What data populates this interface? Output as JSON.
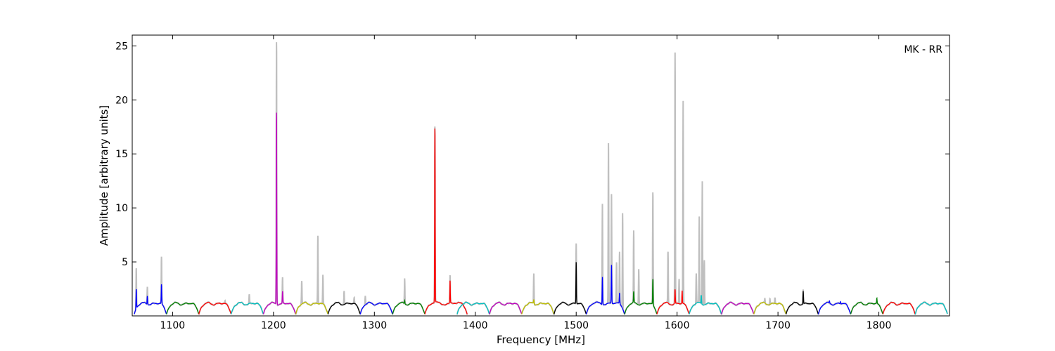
{
  "chart_data": {
    "type": "line",
    "title": "",
    "annotation": "MK - RR",
    "xlabel": "Frequency [MHz]",
    "ylabel": "Amplitude [arbitrary units]",
    "xlim": [
      1060,
      1870
    ],
    "ylim": [
      0,
      26
    ],
    "xticks": [
      1100,
      1200,
      1300,
      1400,
      1500,
      1600,
      1700,
      1800
    ],
    "xtick_labels": [
      "1100",
      "1200",
      "1300",
      "1400",
      "1500",
      "1600",
      "1700",
      "1800"
    ],
    "yticks": [
      5,
      10,
      15,
      20,
      25
    ],
    "ytick_labels": [
      "5",
      "10",
      "15",
      "20",
      "25"
    ],
    "grid": false,
    "raw_color": "#bfbfbf",
    "bands": [
      {
        "start": 1062,
        "end": 1094,
        "color": "#0000ff",
        "peaks": [
          [
            1064,
            3.0
          ],
          [
            1075,
            2.0
          ],
          [
            1089,
            3.0
          ]
        ],
        "raw_peaks": [
          [
            1064,
            5.0
          ],
          [
            1075,
            2.9
          ],
          [
            1089,
            5.6
          ]
        ]
      },
      {
        "start": 1094,
        "end": 1126,
        "color": "#008000",
        "peaks": [],
        "raw_peaks": []
      },
      {
        "start": 1126,
        "end": 1158,
        "color": "#ff0000",
        "peaks": [],
        "raw_peaks": [
          [
            1152,
            1.5
          ]
        ]
      },
      {
        "start": 1158,
        "end": 1190,
        "color": "#00bfbf",
        "peaks": [],
        "raw_peaks": [
          [
            1176,
            2.0
          ]
        ]
      },
      {
        "start": 1190,
        "end": 1222,
        "color": "#bf00bf",
        "peaks": [
          [
            1203,
            19.2
          ],
          [
            1209,
            2.3
          ]
        ],
        "raw_peaks": [
          [
            1203,
            25.8
          ],
          [
            1209,
            3.6
          ]
        ]
      },
      {
        "start": 1222,
        "end": 1254,
        "color": "#bfbf00",
        "peaks": [],
        "raw_peaks": [
          [
            1228,
            3.3
          ],
          [
            1244,
            7.6
          ],
          [
            1249,
            3.9
          ]
        ]
      },
      {
        "start": 1254,
        "end": 1286,
        "color": "#000000",
        "peaks": [],
        "raw_peaks": [
          [
            1270,
            2.5
          ],
          [
            1280,
            1.7
          ]
        ]
      },
      {
        "start": 1286,
        "end": 1318,
        "color": "#0000ff",
        "peaks": [],
        "raw_peaks": [
          [
            1291,
            2.0
          ]
        ]
      },
      {
        "start": 1318,
        "end": 1350,
        "color": "#008000",
        "peaks": [
          [
            1330,
            1.5
          ]
        ],
        "raw_peaks": [
          [
            1330,
            3.6
          ]
        ]
      },
      {
        "start": 1350,
        "end": 1392,
        "color": "#ff0000",
        "peaks": [
          [
            1360,
            17.5
          ],
          [
            1375,
            3.3
          ]
        ],
        "raw_peaks": [
          [
            1360,
            17.7
          ],
          [
            1375,
            3.8
          ]
        ]
      },
      {
        "start": 1382,
        "end": 1414,
        "color": "#00bfbf",
        "peaks": [],
        "raw_peaks": [
          [
            1420,
            1.6
          ]
        ]
      },
      {
        "start": 1414,
        "end": 1446,
        "color": "#bf00bf",
        "peaks": [],
        "raw_peaks": []
      },
      {
        "start": 1446,
        "end": 1478,
        "color": "#bfbf00",
        "peaks": [
          [
            1458,
            1.6
          ]
        ],
        "raw_peaks": [
          [
            1458,
            4.0
          ]
        ]
      },
      {
        "start": 1478,
        "end": 1510,
        "color": "#000000",
        "peaks": [
          [
            1500,
            5.1
          ]
        ],
        "raw_peaks": [
          [
            1500,
            6.9
          ]
        ]
      },
      {
        "start": 1510,
        "end": 1548,
        "color": "#0000ff",
        "peaks": [
          [
            1526,
            3.8
          ],
          [
            1535,
            4.8
          ],
          [
            1543,
            2.2
          ]
        ],
        "raw_peaks": [
          [
            1526,
            10.7
          ],
          [
            1532,
            16.2
          ],
          [
            1535,
            11.4
          ],
          [
            1540,
            5.0
          ],
          [
            1543,
            6.0
          ],
          [
            1546,
            10.0
          ],
          [
            1549,
            4.6
          ]
        ]
      },
      {
        "start": 1548,
        "end": 1580,
        "color": "#008000",
        "peaks": [
          [
            1557,
            2.2
          ],
          [
            1576,
            3.6
          ]
        ],
        "raw_peaks": [
          [
            1557,
            7.8
          ],
          [
            1562,
            4.6
          ],
          [
            1576,
            11.7
          ]
        ]
      },
      {
        "start": 1580,
        "end": 1612,
        "color": "#ff0000",
        "peaks": [
          [
            1598,
            2.5
          ],
          [
            1605,
            2.4
          ]
        ],
        "raw_peaks": [
          [
            1591,
            6.0
          ],
          [
            1598,
            24.4
          ],
          [
            1602,
            3.5
          ],
          [
            1606,
            20.2
          ]
        ]
      },
      {
        "start": 1612,
        "end": 1644,
        "color": "#00bfbf",
        "peaks": [
          [
            1624,
            2.0
          ]
        ],
        "raw_peaks": [
          [
            1619,
            4.0
          ],
          [
            1622,
            9.3
          ],
          [
            1625,
            12.8
          ],
          [
            1627,
            5.3
          ]
        ]
      },
      {
        "start": 1644,
        "end": 1676,
        "color": "#bf00bf",
        "peaks": [],
        "raw_peaks": []
      },
      {
        "start": 1676,
        "end": 1708,
        "color": "#bfbf00",
        "peaks": [],
        "raw_peaks": [
          [
            1687,
            1.6
          ],
          [
            1692,
            1.8
          ],
          [
            1697,
            1.7
          ]
        ]
      },
      {
        "start": 1708,
        "end": 1740,
        "color": "#000000",
        "peaks": [
          [
            1725,
            2.4
          ]
        ],
        "raw_peaks": [
          [
            1725,
            2.6
          ]
        ]
      },
      {
        "start": 1740,
        "end": 1772,
        "color": "#0000ff",
        "peaks": [
          [
            1751,
            1.4
          ],
          [
            1762,
            1.4
          ]
        ],
        "raw_peaks": []
      },
      {
        "start": 1772,
        "end": 1804,
        "color": "#008000",
        "peaks": [
          [
            1798,
            1.7
          ]
        ],
        "raw_peaks": []
      },
      {
        "start": 1804,
        "end": 1836,
        "color": "#ff0000",
        "peaks": [],
        "raw_peaks": []
      },
      {
        "start": 1836,
        "end": 1868,
        "color": "#00bfbf",
        "peaks": [],
        "raw_peaks": []
      }
    ]
  }
}
